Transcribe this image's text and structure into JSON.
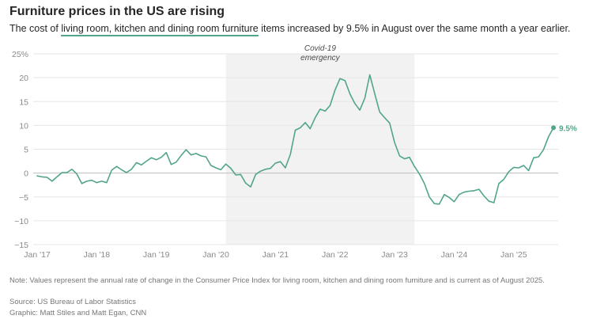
{
  "header": {
    "title": "Furniture prices in the US are rising",
    "subtitle_pre": "The cost of ",
    "subtitle_highlight": "living room, kitchen and dining room furniture",
    "subtitle_post": " items increased by 9.5% in August over the same month a year earlier."
  },
  "footer": {
    "note": "Note: Values represent the annual rate of change in the Consumer Price Index for living room, kitchen and dining room furniture and is current as of August 2025.",
    "source": "Source: US Bureau of Labor Statistics",
    "graphic": "Graphic: Matt Stiles and Matt Egan, CNN"
  },
  "colors": {
    "line": "#52a48c",
    "shade": "#f2f2f2",
    "grid": "#e6e6e6",
    "zero": "#bdbdbd"
  },
  "chart_data": {
    "type": "line",
    "title": "Furniture prices in the US are rising",
    "xlabel": "",
    "ylabel": "",
    "ylim": [
      -15,
      25
    ],
    "yticks": [
      25,
      20,
      15,
      10,
      5,
      0,
      -5,
      -10,
      -15
    ],
    "ytick_labels": [
      "25%",
      "20",
      "15",
      "10",
      "5",
      "0",
      "−5",
      "−10",
      "−15"
    ],
    "x_start": "Jan 2017",
    "x_end": "Aug 2025",
    "xtick_labels": [
      "Jan '17",
      "Jan '18",
      "Jan '19",
      "Jan '20",
      "Jan '21",
      "Jan '22",
      "Jan '23",
      "Jan '24",
      "Jan '25"
    ],
    "shaded_region": {
      "start_month_index": 38,
      "end_month_index": 76,
      "label_line1": "Covid-19",
      "label_line2": "emergency"
    },
    "end_label": "9.5%",
    "series": [
      {
        "name": "Living room, kitchen and dining room furniture CPI, annual % change",
        "values": [
          -0.6,
          -0.8,
          -0.9,
          -1.7,
          -0.8,
          0.1,
          0.1,
          0.8,
          -0.2,
          -2.2,
          -1.7,
          -1.5,
          -2.0,
          -1.7,
          -2.0,
          0.6,
          1.4,
          0.7,
          0.1,
          0.8,
          2.2,
          1.7,
          2.5,
          3.2,
          2.8,
          3.3,
          4.3,
          1.8,
          2.3,
          3.7,
          4.9,
          3.8,
          4.1,
          3.6,
          3.4,
          1.6,
          1.1,
          0.7,
          1.9,
          1.0,
          -0.4,
          -0.3,
          -2.1,
          -2.9,
          -0.3,
          0.4,
          0.8,
          1.0,
          2.1,
          2.4,
          1.1,
          3.9,
          9.0,
          9.5,
          10.6,
          9.3,
          11.6,
          13.4,
          13.0,
          14.2,
          17.4,
          19.8,
          19.4,
          16.6,
          14.6,
          13.2,
          15.7,
          20.6,
          16.6,
          12.8,
          11.6,
          10.5,
          6.4,
          3.6,
          3.0,
          3.3,
          1.4,
          -0.2,
          -2.2,
          -5.0,
          -6.4,
          -6.5,
          -4.5,
          -5.1,
          -6.0,
          -4.5,
          -4.0,
          -3.8,
          -3.7,
          -3.4,
          -4.8,
          -5.9,
          -6.2,
          -2.2,
          -1.3,
          0.3,
          1.2,
          1.1,
          1.6,
          0.5,
          3.2,
          3.4,
          4.9,
          7.6,
          9.5
        ]
      }
    ]
  }
}
